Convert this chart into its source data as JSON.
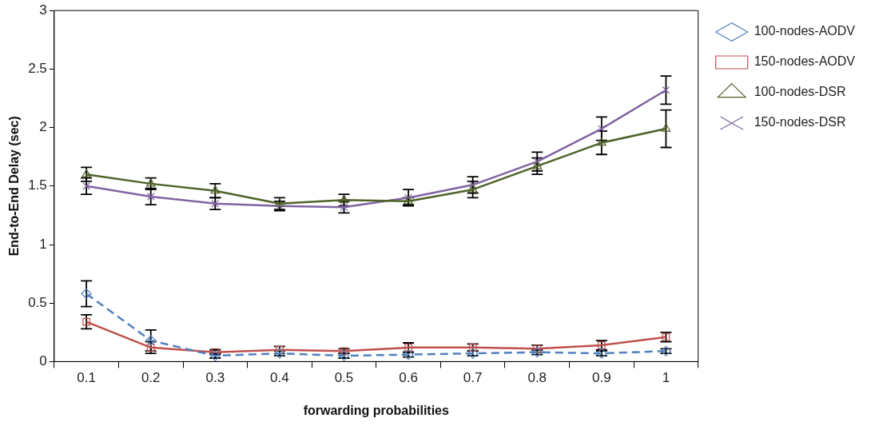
{
  "chart_data": {
    "type": "line",
    "xlabel": "forwarding probabilities",
    "ylabel": "End-to-End Delay (sec)",
    "categories": [
      "0.1",
      "0.2",
      "0.3",
      "0.4",
      "0.5",
      "0.6",
      "0.7",
      "0.8",
      "0.9",
      "1"
    ],
    "ylim": [
      0,
      3
    ],
    "yticks": [
      0,
      0.5,
      1,
      1.5,
      2,
      2.5,
      3
    ],
    "grid": false,
    "legend": "right",
    "series": [
      {
        "name": "100-nodes-AODV",
        "color": "#4f81bd",
        "marker": "diamond",
        "line_style": "dashed",
        "values": [
          0.58,
          0.18,
          0.05,
          0.07,
          0.05,
          0.06,
          0.07,
          0.08,
          0.07,
          0.09
        ],
        "errors": [
          0.11,
          0.09,
          0.02,
          0.02,
          0.02,
          0.02,
          0.02,
          0.02,
          0.02,
          0.02
        ]
      },
      {
        "name": "150-nodes-AODV",
        "color": "#c0504d",
        "marker": "square",
        "line_style": "solid",
        "values": [
          0.34,
          0.12,
          0.08,
          0.1,
          0.09,
          0.12,
          0.12,
          0.11,
          0.14,
          0.21
        ],
        "errors": [
          0.06,
          0.05,
          0.02,
          0.03,
          0.02,
          0.04,
          0.03,
          0.03,
          0.04,
          0.04
        ]
      },
      {
        "name": "100-nodes-DSR",
        "color": "#4f6228",
        "marker": "triangle",
        "line_style": "solid",
        "values": [
          1.6,
          1.52,
          1.46,
          1.35,
          1.38,
          1.37,
          1.47,
          1.67,
          1.87,
          1.99
        ],
        "errors": [
          0.06,
          0.05,
          0.06,
          0.05,
          0.05,
          0.03,
          0.07,
          0.07,
          0.1,
          0.16
        ]
      },
      {
        "name": "150-nodes-DSR",
        "color": "#8064a2",
        "marker": "cross",
        "line_style": "solid",
        "values": [
          1.5,
          1.41,
          1.35,
          1.33,
          1.32,
          1.4,
          1.51,
          1.71,
          1.99,
          2.32
        ],
        "errors": [
          0.07,
          0.07,
          0.05,
          0.04,
          0.05,
          0.07,
          0.07,
          0.08,
          0.1,
          0.12
        ]
      }
    ]
  }
}
